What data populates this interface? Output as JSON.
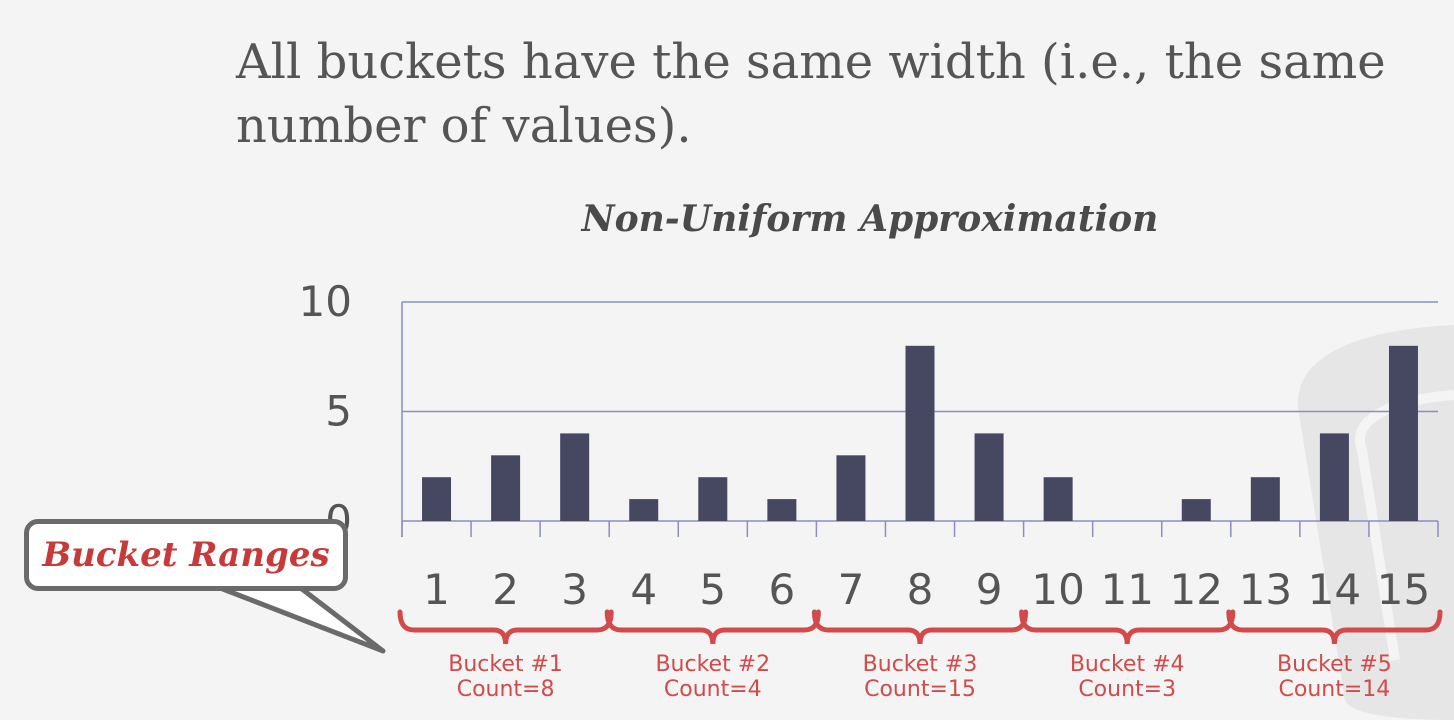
{
  "headline": "All buckets have the same width (i.e., the same number of values).",
  "chart_data": {
    "type": "bar",
    "title": "Non-Uniform Approximation",
    "categories": [
      "1",
      "2",
      "3",
      "4",
      "5",
      "6",
      "7",
      "8",
      "9",
      "10",
      "11",
      "12",
      "13",
      "14",
      "15"
    ],
    "values": [
      2,
      3,
      4,
      1,
      2,
      1,
      3,
      8,
      4,
      2,
      0,
      1,
      2,
      4,
      8
    ],
    "yticks": [
      "0",
      "5",
      "10"
    ],
    "ylim": [
      0,
      10
    ],
    "grid": true,
    "bar_color": "#464862"
  },
  "buckets": [
    {
      "label": "Bucket #1",
      "count": "Count=8"
    },
    {
      "label": "Bucket #2",
      "count": "Count=4"
    },
    {
      "label": "Bucket #3",
      "count": "Count=15"
    },
    {
      "label": "Bucket #4",
      "count": "Count=3"
    },
    {
      "label": "Bucket #5",
      "count": "Count=14"
    }
  ],
  "callout": {
    "label": "Bucket Ranges"
  },
  "colors": {
    "accent": "#d24a4a",
    "text": "#555555",
    "axis": "#8a8ec0",
    "bars": "#464862"
  }
}
